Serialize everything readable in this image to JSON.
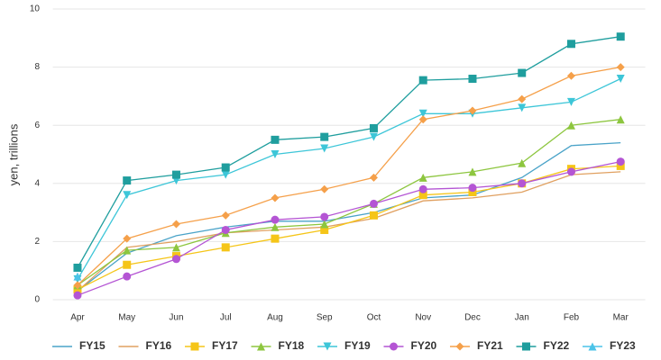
{
  "chart_data": {
    "type": "line",
    "ylabel": "yen, trillions",
    "categories": [
      "Apr",
      "May",
      "Jun",
      "Jul",
      "Aug",
      "Sep",
      "Oct",
      "Nov",
      "Dec",
      "Jan",
      "Feb",
      "Mar"
    ],
    "ylim": [
      0,
      10
    ],
    "yticks": [
      0,
      2,
      4,
      6,
      8,
      10
    ],
    "grid": true,
    "legend": "bottom",
    "series": [
      {
        "name": "FY15",
        "color": "#4aa3c8",
        "marker": "none",
        "values": [
          0.3,
          1.6,
          2.2,
          2.5,
          2.7,
          2.7,
          3.0,
          3.5,
          3.6,
          4.2,
          5.3,
          5.4
        ]
      },
      {
        "name": "FY16",
        "color": "#e0a060",
        "marker": "none",
        "values": [
          0.3,
          1.8,
          2.0,
          2.3,
          2.4,
          2.5,
          2.8,
          3.4,
          3.5,
          3.7,
          4.3,
          4.4
        ]
      },
      {
        "name": "FY17",
        "color": "#f5c518",
        "marker": "square",
        "values": [
          0.35,
          1.2,
          1.5,
          1.8,
          2.1,
          2.4,
          2.9,
          3.6,
          3.7,
          4.0,
          4.5,
          4.6
        ]
      },
      {
        "name": "FY18",
        "color": "#8dc63f",
        "marker": "triangle",
        "values": [
          0.5,
          1.7,
          1.8,
          2.3,
          2.5,
          2.6,
          3.3,
          4.2,
          4.4,
          4.7,
          6.0,
          6.2
        ]
      },
      {
        "name": "FY19",
        "color": "#3dc6d8",
        "marker": "triangle-down",
        "values": [
          0.7,
          3.6,
          4.1,
          4.3,
          5.0,
          5.2,
          5.6,
          6.4,
          6.4,
          6.6,
          6.8,
          7.6
        ]
      },
      {
        "name": "FY20",
        "color": "#b455d4",
        "marker": "circle",
        "values": [
          0.15,
          0.8,
          1.4,
          2.4,
          2.75,
          2.85,
          3.3,
          3.8,
          3.85,
          4.0,
          4.4,
          4.75
        ]
      },
      {
        "name": "FY21",
        "color": "#f5a04a",
        "marker": "diamond",
        "values": [
          0.5,
          2.1,
          2.6,
          2.9,
          3.5,
          3.8,
          4.2,
          6.2,
          6.5,
          6.9,
          7.7,
          8.0
        ]
      },
      {
        "name": "FY22",
        "color": "#1f9e9e",
        "marker": "square",
        "values": [
          1.1,
          4.1,
          4.3,
          4.55,
          5.5,
          5.6,
          5.9,
          7.55,
          7.6,
          7.8,
          8.8,
          9.05
        ]
      },
      {
        "name": "FY23",
        "color": "#4cc3e8",
        "marker": "triangle",
        "values": [
          0.8,
          null,
          null,
          null,
          null,
          null,
          null,
          null,
          null,
          null,
          null,
          null
        ]
      }
    ]
  }
}
